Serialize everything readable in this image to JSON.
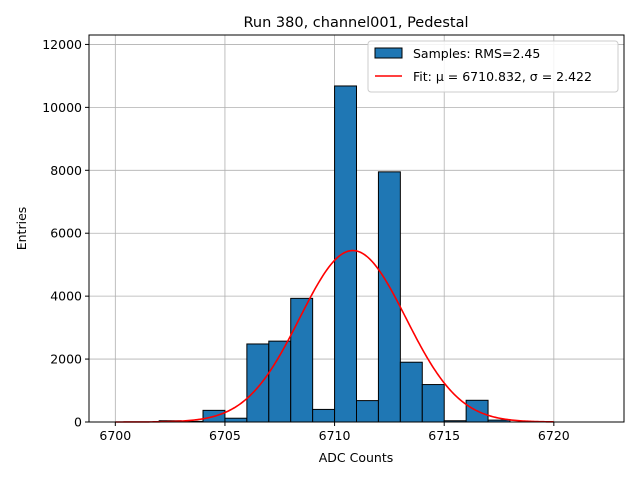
{
  "chart_data": {
    "type": "bar",
    "title": "Run 380, channel001, Pedestal",
    "xlabel": "ADC Counts",
    "ylabel": "Entries",
    "xlim": [
      6698.8,
      6723.2
    ],
    "ylim": [
      0,
      12300
    ],
    "xticks": [
      6700,
      6705,
      6710,
      6715,
      6720
    ],
    "yticks": [
      0,
      2000,
      4000,
      6000,
      8000,
      10000,
      12000
    ],
    "grid": true,
    "legend_position": "top-right",
    "histogram": {
      "name": "Samples: RMS=2.45",
      "color": "#1f77b4",
      "edgecolor": "#000000",
      "bins": [
        {
          "x0": 6702,
          "x1": 6703,
          "value": 40
        },
        {
          "x0": 6703,
          "x1": 6704,
          "value": 20
        },
        {
          "x0": 6704,
          "x1": 6705,
          "value": 370
        },
        {
          "x0": 6705,
          "x1": 6706,
          "value": 120
        },
        {
          "x0": 6706,
          "x1": 6707,
          "value": 2480
        },
        {
          "x0": 6707,
          "x1": 6708,
          "value": 2570
        },
        {
          "x0": 6708,
          "x1": 6709,
          "value": 3930
        },
        {
          "x0": 6709,
          "x1": 6710,
          "value": 400
        },
        {
          "x0": 6710,
          "x1": 6711,
          "value": 10680
        },
        {
          "x0": 6711,
          "x1": 6712,
          "value": 680
        },
        {
          "x0": 6712,
          "x1": 6713,
          "value": 7950
        },
        {
          "x0": 6713,
          "x1": 6714,
          "value": 1900
        },
        {
          "x0": 6714,
          "x1": 6715,
          "value": 1190
        },
        {
          "x0": 6715,
          "x1": 6716,
          "value": 40
        },
        {
          "x0": 6716,
          "x1": 6717,
          "value": 690
        },
        {
          "x0": 6717,
          "x1": 6718,
          "value": 60
        }
      ]
    },
    "fit": {
      "name": "Fit: μ = 6710.832, σ = 2.422",
      "color": "#ff0000",
      "mu": 6710.832,
      "sigma": 2.422,
      "amplitude": 5450,
      "x_range": [
        6700,
        6720
      ]
    }
  }
}
